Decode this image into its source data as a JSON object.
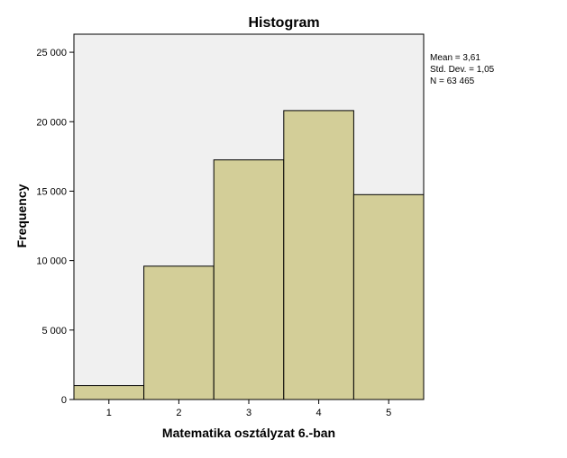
{
  "chart_data": {
    "type": "bar",
    "title": "Histogram",
    "xlabel": "Matematika osztályzat 6.-ban",
    "ylabel": "Frequency",
    "categories": [
      "1",
      "2",
      "3",
      "4",
      "5"
    ],
    "values": [
      1000,
      9600,
      17250,
      20800,
      14750
    ],
    "ylim": [
      0,
      26300
    ],
    "xlim": [
      0.5,
      5.5
    ],
    "yticks": [
      0,
      5000,
      10000,
      15000,
      20000,
      25000
    ],
    "ytick_labels": [
      "0",
      "5 000",
      "10 000",
      "15 000",
      "20 000",
      "25 000"
    ],
    "grid": false,
    "stats": [
      "Mean = 3,61",
      "Std. Dev. = 1,05",
      "N = 63 465"
    ],
    "stats_placement": "top-right, outside plot"
  },
  "colors": {
    "plot_background": "#f0f0f0",
    "bar_fill": "#d3ce98",
    "bar_stroke": "#000000",
    "axis": "#000000"
  }
}
